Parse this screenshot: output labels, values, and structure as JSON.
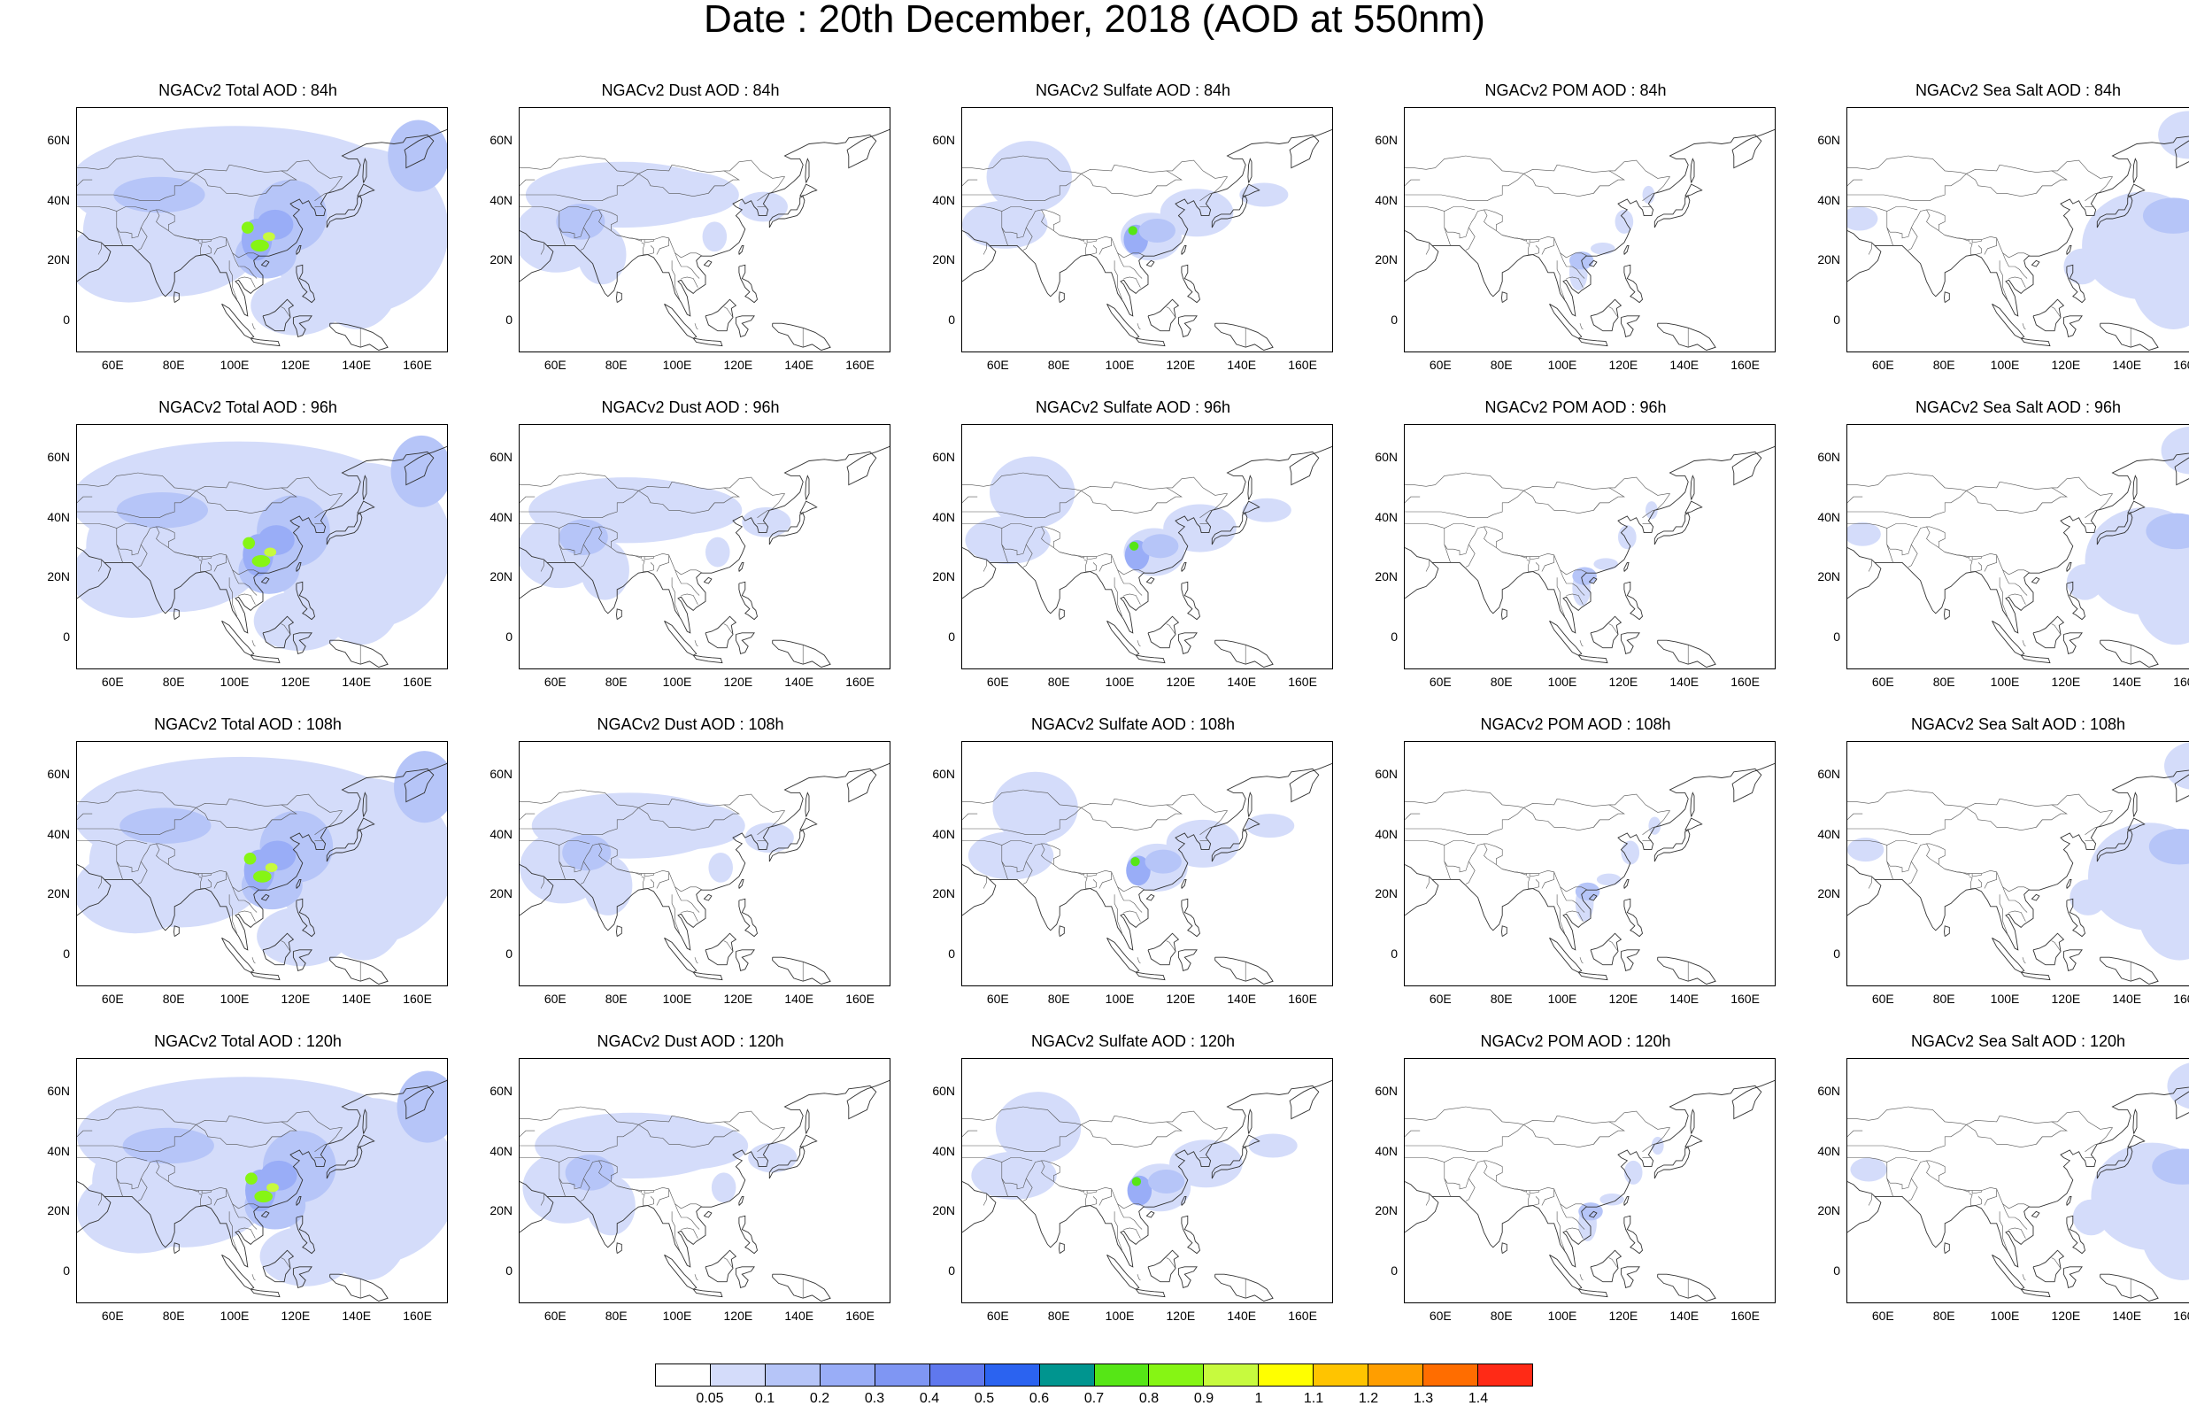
{
  "title": "Date : 20th December, 2018 (AOD at 550nm)",
  "y_ticks": [
    "60N",
    "40N",
    "20N",
    "0"
  ],
  "x_ticks": [
    "60E",
    "80E",
    "100E",
    "120E",
    "140E",
    "160E"
  ],
  "panels": [
    {
      "title": "NGACv2 Total AOD : 84h",
      "species": "total",
      "forecast_hour": 84
    },
    {
      "title": "NGACv2 Dust AOD : 84h",
      "species": "dust",
      "forecast_hour": 84
    },
    {
      "title": "NGACv2 Sulfate AOD : 84h",
      "species": "sulfate",
      "forecast_hour": 84
    },
    {
      "title": "NGACv2 POM AOD : 84h",
      "species": "pom",
      "forecast_hour": 84
    },
    {
      "title": "NGACv2 Sea Salt AOD : 84h",
      "species": "seasalt",
      "forecast_hour": 84
    },
    {
      "title": "NGACv2 Total AOD : 96h",
      "species": "total",
      "forecast_hour": 96
    },
    {
      "title": "NGACv2 Dust AOD : 96h",
      "species": "dust",
      "forecast_hour": 96
    },
    {
      "title": "NGACv2 Sulfate AOD : 96h",
      "species": "sulfate",
      "forecast_hour": 96
    },
    {
      "title": "NGACv2 POM AOD : 96h",
      "species": "pom",
      "forecast_hour": 96
    },
    {
      "title": "NGACv2 Sea Salt AOD : 96h",
      "species": "seasalt",
      "forecast_hour": 96
    },
    {
      "title": "NGACv2 Total AOD : 108h",
      "species": "total",
      "forecast_hour": 108
    },
    {
      "title": "NGACv2 Dust AOD : 108h",
      "species": "dust",
      "forecast_hour": 108
    },
    {
      "title": "NGACv2 Sulfate AOD : 108h",
      "species": "sulfate",
      "forecast_hour": 108
    },
    {
      "title": "NGACv2 POM AOD : 108h",
      "species": "pom",
      "forecast_hour": 108
    },
    {
      "title": "NGACv2 Sea Salt AOD : 108h",
      "species": "seasalt",
      "forecast_hour": 108
    },
    {
      "title": "NGACv2 Total AOD : 120h",
      "species": "total",
      "forecast_hour": 120
    },
    {
      "title": "NGACv2 Dust AOD : 120h",
      "species": "dust",
      "forecast_hour": 120
    },
    {
      "title": "NGACv2 Sulfate AOD : 120h",
      "species": "sulfate",
      "forecast_hour": 120
    },
    {
      "title": "NGACv2 POM AOD : 120h",
      "species": "pom",
      "forecast_hour": 120
    },
    {
      "title": "NGACv2 Sea Salt  AOD : 120h",
      "species": "seasalt",
      "forecast_hour": 120
    }
  ],
  "colorbar": {
    "labels": [
      "0.05",
      "0.1",
      "0.2",
      "0.3",
      "0.4",
      "0.5",
      "0.6",
      "0.7",
      "0.8",
      "0.9",
      "1",
      "1.1",
      "1.2",
      "1.3",
      "1.4"
    ],
    "colors": [
      "#ffffff",
      "#d4dcfa",
      "#b6c5f8",
      "#99adf7",
      "#7f96f3",
      "#5f78ee",
      "#2b63f0",
      "#00958f",
      "#56e616",
      "#86f514",
      "#c7fa3e",
      "#ffff00",
      "#ffc400",
      "#ff9e00",
      "#ff6d00",
      "#ff2a16"
    ]
  }
}
